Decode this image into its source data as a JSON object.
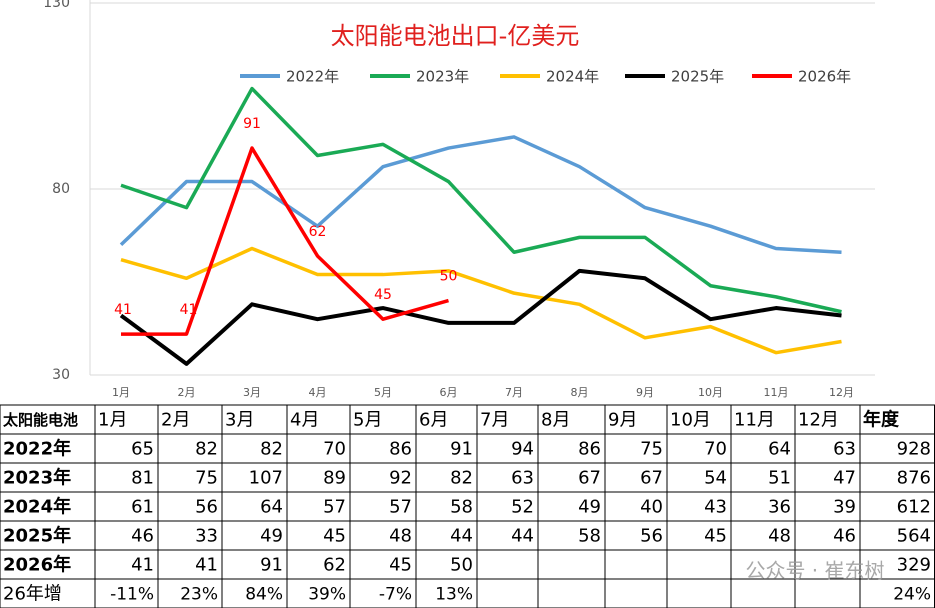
{
  "chart_data": {
    "type": "line",
    "title": "太阳能电池出口-亿美元",
    "categories": [
      "1月",
      "2月",
      "3月",
      "4月",
      "5月",
      "6月",
      "7月",
      "8月",
      "9月",
      "10月",
      "11月",
      "12月"
    ],
    "series": [
      {
        "name": "2022年",
        "color": "#5b9bd5",
        "values": [
          65,
          82,
          82,
          70,
          86,
          91,
          94,
          86,
          75,
          70,
          64,
          63
        ]
      },
      {
        "name": "2023年",
        "color": "#1aaa55",
        "values": [
          81,
          75,
          107,
          89,
          92,
          82,
          63,
          67,
          67,
          54,
          51,
          47
        ]
      },
      {
        "name": "2024年",
        "color": "#ffc000",
        "values": [
          61,
          56,
          64,
          57,
          57,
          58,
          52,
          49,
          40,
          43,
          36,
          39
        ]
      },
      {
        "name": "2025年",
        "color": "#000000",
        "values": [
          46,
          33,
          49,
          45,
          48,
          44,
          44,
          58,
          56,
          45,
          48,
          46
        ]
      },
      {
        "name": "2026年",
        "color": "#ff0000",
        "values": [
          41,
          41,
          91,
          62,
          45,
          50,
          null,
          null,
          null,
          null,
          null,
          null
        ],
        "data_labels": true
      }
    ],
    "ylim": [
      30,
      130
    ],
    "yticks": [
      30,
      80,
      130
    ],
    "grid": true,
    "legend": "top"
  },
  "table": {
    "corner": "太阳能电池",
    "total_header": "年度",
    "totals": [
      928,
      876,
      612,
      564,
      329
    ],
    "growth": {
      "label": "26年增",
      "values": [
        "-11%",
        "23%",
        "84%",
        "39%",
        "-7%",
        "13%"
      ],
      "total": "24%"
    }
  },
  "watermark": "公众号 · 崔东树"
}
